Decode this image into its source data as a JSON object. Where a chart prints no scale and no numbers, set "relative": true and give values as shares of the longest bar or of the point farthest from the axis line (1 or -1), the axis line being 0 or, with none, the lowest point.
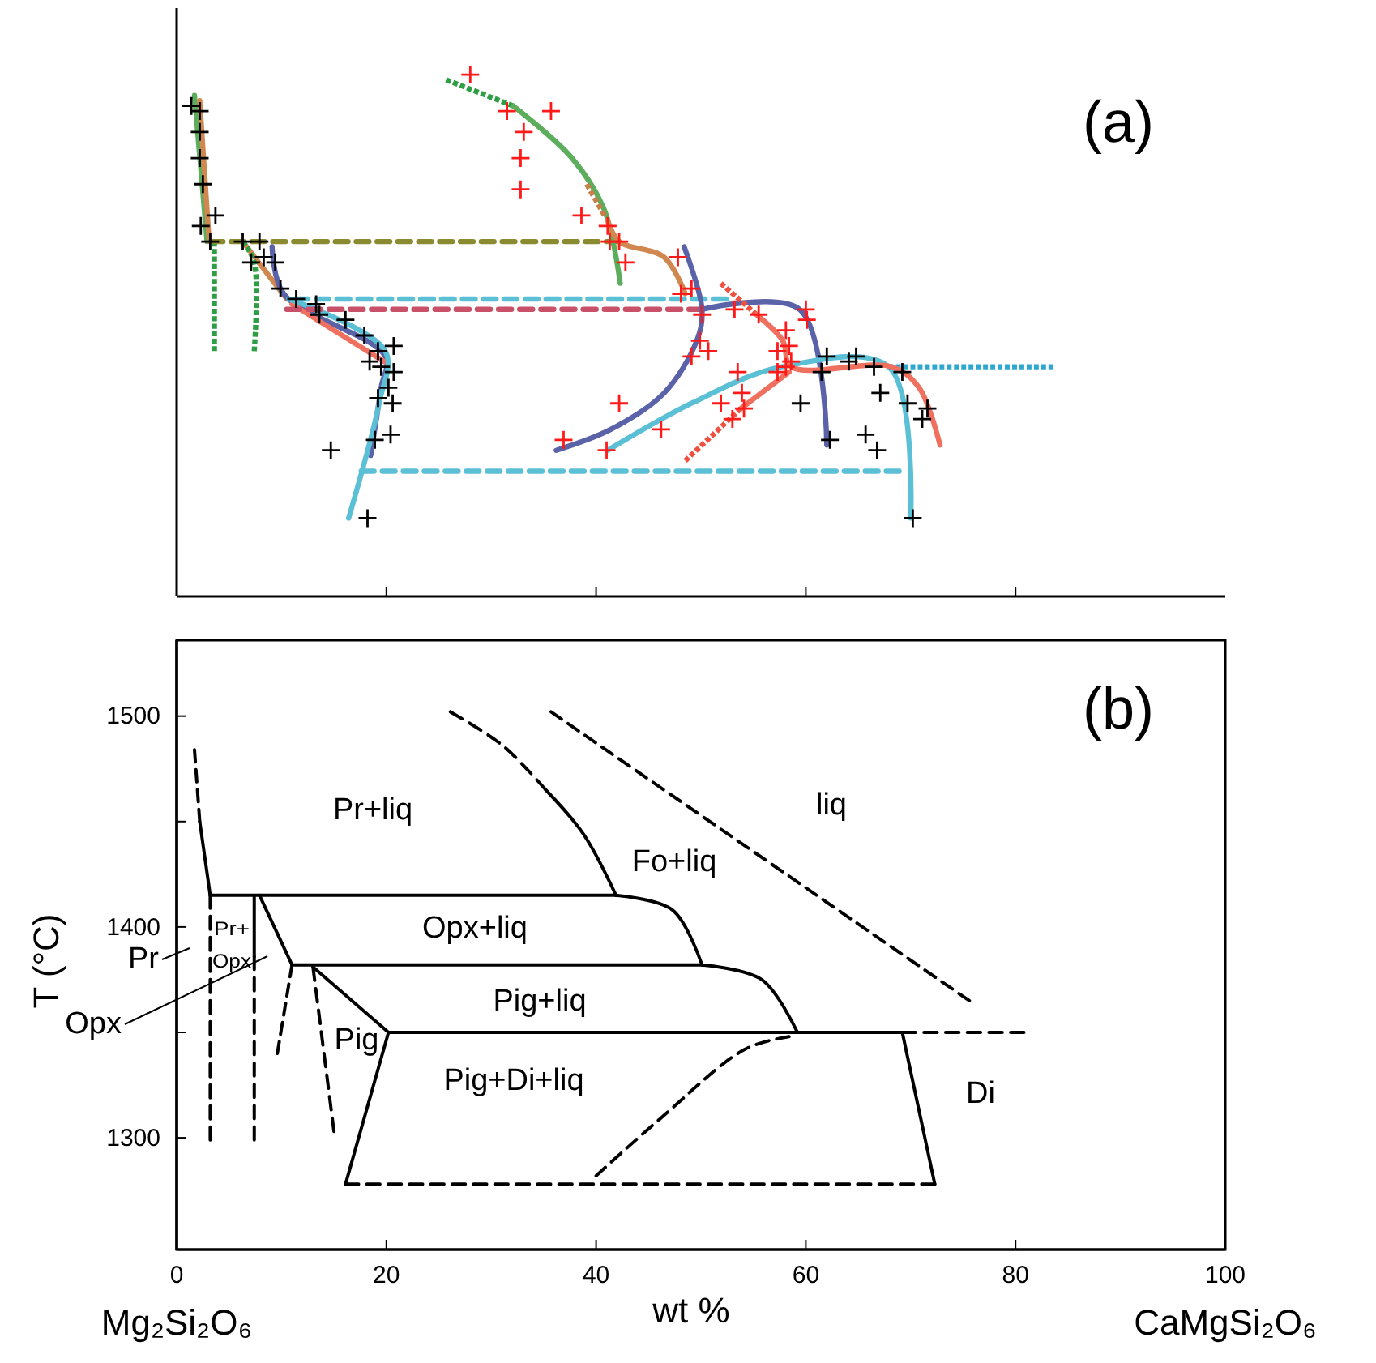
{
  "chart_data": [
    {
      "type": "line",
      "relative": true,
      "xlim": [
        0,
        100
      ],
      "xticks": [
        20,
        40,
        60,
        80
      ],
      "tick_labels": false,
      "annotations": [
        "(a)"
      ],
      "series": [
        {
          "color": "#5cad5c",
          "line_style": "solid",
          "x": [
            1.7,
            2.9
          ],
          "values": [
            0.96,
            0.68
          ]
        },
        {
          "color": "#d08850",
          "line_style": "solid",
          "x": [
            2.2,
            3.1
          ],
          "values": [
            0.95,
            0.68
          ]
        },
        {
          "color": "#2e9e44",
          "line_style": "dotted",
          "x": [
            3.6,
            3.6
          ],
          "values": [
            0.68,
            0.47
          ]
        },
        {
          "color": "#8a8a30",
          "line_style": "dashed",
          "x": [
            3.2,
            42.2
          ],
          "values": [
            0.68,
            0.68
          ]
        },
        {
          "color": "#d08850",
          "line_style": "solid",
          "x": [
            6.3,
            10.5
          ],
          "values": [
            0.68,
            0.57
          ]
        },
        {
          "color": "#2e9e44",
          "line_style": "dotted",
          "x": [
            6.3,
            7.4,
            7.4
          ],
          "values": [
            0.68,
            0.64,
            0.47
          ]
        },
        {
          "color": "#5a62a8",
          "line_style": "solid",
          "x": [
            9.1,
            10.2,
            19.9,
            19.5,
            18.5
          ],
          "values": [
            0.67,
            0.58,
            0.46,
            0.4,
            0.27
          ]
        },
        {
          "color": "#f07060",
          "line_style": "solid",
          "x": [
            11.0,
            19.8
          ],
          "values": [
            0.56,
            0.45
          ]
        },
        {
          "color": "#5bbfd6",
          "line_style": "solid",
          "x": [
            10.7,
            19.9,
            19.3,
            16.4
          ],
          "values": [
            0.57,
            0.47,
            0.37,
            0.15
          ]
        },
        {
          "color": "#5bbfd6",
          "line_style": "dashed",
          "x": [
            11.3,
            52.4
          ],
          "values": [
            0.57,
            0.57
          ]
        },
        {
          "color": "#c85068",
          "line_style": "dashed",
          "x": [
            10.5,
            50.1
          ],
          "values": [
            0.55,
            0.55
          ]
        },
        {
          "color": "#5bbfd6",
          "line_style": "dashed",
          "x": [
            17.6,
            68.9
          ],
          "values": [
            0.24,
            0.24
          ]
        },
        {
          "color": "#2e9e44",
          "line_style": "dotted",
          "x": [
            25.7,
            32.1
          ],
          "values": [
            0.99,
            0.94
          ]
        },
        {
          "color": "#5cad5c",
          "line_style": "solid",
          "x": [
            32.1,
            37.7,
            40.8,
            42.3
          ],
          "values": [
            0.94,
            0.84,
            0.74,
            0.6
          ]
        },
        {
          "color": "#d08850",
          "line_style": "solid",
          "x": [
            41.1,
            42.2,
            46.5,
            48.5
          ],
          "values": [
            0.72,
            0.68,
            0.65,
            0.58
          ]
        },
        {
          "color": "#c8804a",
          "line_style": "dotted",
          "x": [
            39.1,
            40.8
          ],
          "values": [
            0.79,
            0.73
          ]
        },
        {
          "color": "#5a62a8",
          "line_style": "solid",
          "x": [
            48.4,
            50.1,
            49.6,
            46.5,
            41.4,
            36.2
          ],
          "values": [
            0.67,
            0.55,
            0.49,
            0.39,
            0.32,
            0.28
          ]
        },
        {
          "color": "#5a62a8",
          "line_style": "solid",
          "x": [
            50.1,
            59.4,
            62.0
          ],
          "values": [
            0.55,
            0.55,
            0.29
          ]
        },
        {
          "color": "#5bbfd6",
          "line_style": "solid",
          "x": [
            41.1,
            49.1,
            57.7,
            67.9,
            70.0
          ],
          "values": [
            0.28,
            0.37,
            0.44,
            0.44,
            0.15
          ]
        },
        {
          "color": "#2fa8d0",
          "line_style": "dotted",
          "x": [
            67.9,
            83.6
          ],
          "values": [
            0.44,
            0.44
          ]
        },
        {
          "color": "#f05040",
          "line_style": "dotted",
          "x": [
            51.9,
            55.3
          ],
          "values": [
            0.6,
            0.54
          ]
        },
        {
          "color": "#f07060",
          "line_style": "solid",
          "x": [
            55.3,
            57.8,
            58.6,
            68.2,
            70.8,
            72.8
          ],
          "values": [
            0.54,
            0.49,
            0.44,
            0.44,
            0.4,
            0.29
          ]
        },
        {
          "color": "#f07060",
          "line_style": "solid",
          "x": [
            58.4,
            53.8
          ],
          "values": [
            0.43,
            0.36
          ]
        },
        {
          "color": "#f05040",
          "line_style": "dotted",
          "x": [
            53.8,
            48.5
          ],
          "values": [
            0.36,
            0.26
          ]
        },
        {
          "type": "scatter",
          "marker": "cross",
          "color": "#ff1a1a",
          "x": [
            28.0,
            31.5,
            35.7,
            33.1,
            32.8,
            32.8,
            38.6,
            41.1,
            41.3,
            42.2,
            42.8,
            47.8,
            48.1,
            42.2,
            36.9,
            41.0,
            46.2,
            49.1,
            50.1,
            53.2,
            55.5,
            60.0,
            60.1,
            58.1,
            58.4,
            49.9,
            49.1,
            50.7,
            57.3,
            58.6,
            58.1,
            57.3,
            53.5,
            53.9,
            51.9,
            54.1,
            53.0
          ],
          "values": [
            1.0,
            0.93,
            0.93,
            0.89,
            0.84,
            0.78,
            0.73,
            0.71,
            0.68,
            0.68,
            0.64,
            0.65,
            0.58,
            0.37,
            0.3,
            0.28,
            0.32,
            0.59,
            0.54,
            0.55,
            0.54,
            0.55,
            0.53,
            0.51,
            0.48,
            0.49,
            0.46,
            0.47,
            0.47,
            0.45,
            0.44,
            0.43,
            0.43,
            0.39,
            0.37,
            0.36,
            0.34
          ]
        },
        {
          "type": "scatter",
          "marker": "cross",
          "color": "#000000",
          "x": [
            1.4,
            2.2,
            2.2,
            2.2,
            2.5,
            3.7,
            2.3,
            3.2,
            6.3,
            7.9,
            8.3,
            7.1,
            9.4,
            9.9,
            11.4,
            13.3,
            13.6,
            16.1,
            17.9,
            19.2,
            20.7,
            18.4,
            19.5,
            20.7,
            20.2,
            19.2,
            20.6,
            20.4,
            18.9,
            14.7,
            18.2,
            62.0,
            64.8,
            64.1,
            61.5,
            66.5,
            69.2,
            59.5,
            67.1,
            69.7,
            71.6,
            71.1,
            65.7,
            66.8,
            62.3,
            70.2
          ],
          "values": [
            0.94,
            0.93,
            0.89,
            0.84,
            0.79,
            0.73,
            0.71,
            0.68,
            0.68,
            0.68,
            0.65,
            0.64,
            0.64,
            0.59,
            0.57,
            0.56,
            0.54,
            0.53,
            0.5,
            0.47,
            0.48,
            0.45,
            0.44,
            0.43,
            0.4,
            0.38,
            0.37,
            0.31,
            0.3,
            0.28,
            0.15,
            0.46,
            0.46,
            0.45,
            0.43,
            0.44,
            0.43,
            0.37,
            0.39,
            0.37,
            0.36,
            0.34,
            0.31,
            0.28,
            0.3,
            0.15
          ]
        }
      ]
    },
    {
      "type": "line",
      "xlim": [
        0,
        100
      ],
      "ylim": [
        1247,
        1536
      ],
      "xticks": [
        0,
        20,
        40,
        60,
        80,
        100
      ],
      "yticks": [
        1300,
        {
          "value": 1350,
          "label": null
        },
        1400,
        {
          "value": 1450,
          "label": null
        },
        1500
      ],
      "xlabel": "wt %",
      "ylabel": "T (°C)",
      "annotations": [
        "(b)",
        "Pr+liq",
        "Fo+liq",
        "liq",
        "Opx+liq",
        "Pig+liq",
        "Pig",
        "Pig+Di+liq",
        "Di",
        "Pr+",
        "Opx",
        "Pr",
        "Opx",
        "Mg₂Si₂O₆",
        "CaMgSi₂O₆"
      ],
      "series": [
        {
          "color": "#000000",
          "line_style": "dashed",
          "x": [
            1.7,
            2.2
          ],
          "values": [
            1484,
            1450
          ]
        },
        {
          "color": "#000000",
          "line_style": "solid",
          "x": [
            2.2,
            3.2
          ],
          "values": [
            1450,
            1415
          ]
        },
        {
          "color": "#000000",
          "line_style": "solid",
          "x": [
            3.2,
            41.9
          ],
          "values": [
            1415,
            1415
          ]
        },
        {
          "color": "#000000",
          "line_style": "solid",
          "x": [
            41.9,
            38.8,
            35.2
          ],
          "values": [
            1415,
            1444,
            1465
          ]
        },
        {
          "color": "#000000",
          "line_style": "dashed",
          "x": [
            35.2,
            31.1,
            26.1
          ],
          "values": [
            1465,
            1486,
            1502
          ]
        },
        {
          "color": "#000000",
          "line_style": "dashed",
          "x": [
            35.7,
            75.6
          ],
          "values": [
            1502,
            1365
          ]
        },
        {
          "color": "#000000",
          "line_style": "solid",
          "x": [
            41.9,
            47.3,
            50.1
          ],
          "values": [
            1415,
            1408,
            1382
          ]
        },
        {
          "color": "#000000",
          "line_style": "solid",
          "x": [
            11.0,
            50.1
          ],
          "values": [
            1382,
            1382
          ]
        },
        {
          "color": "#000000",
          "line_style": "solid",
          "x": [
            50.1,
            55.8,
            59.2
          ],
          "values": [
            1382,
            1375,
            1350
          ]
        },
        {
          "color": "#000000",
          "line_style": "solid",
          "x": [
            20.2,
            69.2
          ],
          "values": [
            1350,
            1350
          ]
        },
        {
          "color": "#000000",
          "line_style": "dashed",
          "x": [
            69.2,
            80.8
          ],
          "values": [
            1350,
            1350
          ]
        },
        {
          "color": "#000000",
          "line_style": "solid",
          "x": [
            69.2,
            72.3
          ],
          "values": [
            1350,
            1278
          ]
        },
        {
          "color": "#000000",
          "line_style": "dashed",
          "x": [
            16.1,
            72.3
          ],
          "values": [
            1278,
            1278
          ]
        },
        {
          "color": "#000000",
          "line_style": "solid",
          "x": [
            20.2,
            16.1
          ],
          "values": [
            1350,
            1278
          ]
        },
        {
          "color": "#000000",
          "line_style": "solid",
          "x": [
            13.0,
            20.2
          ],
          "values": [
            1381,
            1350
          ]
        },
        {
          "color": "#000000",
          "line_style": "dashed",
          "x": [
            13.0,
            15.0
          ],
          "values": [
            1381,
            1303
          ]
        },
        {
          "color": "#000000",
          "line_style": "solid",
          "x": [
            7.9,
            11.0
          ],
          "values": [
            1415,
            1382
          ]
        },
        {
          "color": "#000000",
          "line_style": "dashed",
          "x": [
            11.0,
            9.6
          ],
          "values": [
            1382,
            1340
          ]
        },
        {
          "color": "#000000",
          "line_style": "dashed",
          "x": [
            3.2,
            3.2
          ],
          "values": [
            1415,
            1299
          ]
        },
        {
          "color": "#000000",
          "line_style": "solid",
          "x": [
            7.4,
            7.4
          ],
          "values": [
            1415,
            1386
          ]
        },
        {
          "color": "#000000",
          "line_style": "dashed",
          "x": [
            7.4,
            7.4
          ],
          "values": [
            1386,
            1299
          ]
        },
        {
          "color": "#000000",
          "line_style": "dashed",
          "x": [
            40.0,
            46.1,
            54.2,
            58.4
          ],
          "values": [
            1282,
            1309,
            1342,
            1348
          ]
        }
      ]
    }
  ]
}
